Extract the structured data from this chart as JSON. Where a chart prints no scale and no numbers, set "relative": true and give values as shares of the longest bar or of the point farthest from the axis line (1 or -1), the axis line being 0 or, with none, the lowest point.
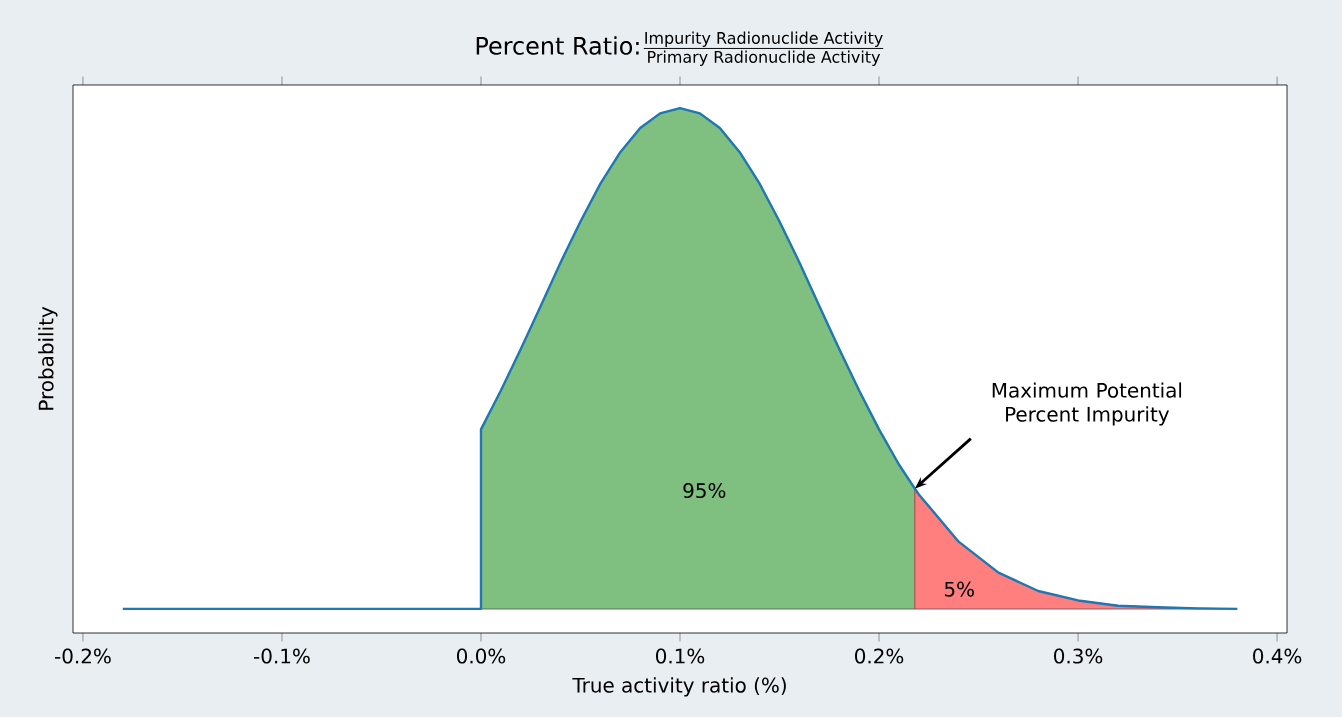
{
  "chart_data": {
    "type": "line",
    "title": "\\text{Percent Ratio:}\\frac{\\text{Impurity Radionuclide Activity}}{\\text{Primary Radionuclide Activity}}",
    "xlabel": "True activity ratio (%)",
    "ylabel": "Probability",
    "relative": true,
    "xlim": [
      -0.205,
      0.405
    ],
    "xticks": [
      {
        "value": -0.2,
        "label": "-0.2%"
      },
      {
        "value": -0.1,
        "label": "-0.1%"
      },
      {
        "value": 0.0,
        "label": "0.0%"
      },
      {
        "value": 0.1,
        "label": "0.1%"
      },
      {
        "value": 0.2,
        "label": "0.2%"
      },
      {
        "value": 0.3,
        "label": "0.3%"
      },
      {
        "value": 0.4,
        "label": "0.4%"
      }
    ],
    "series": [
      {
        "type": "area",
        "color": "#7fbf7f",
        "x": [
          0,
          0.01,
          0.02,
          0.03,
          0.04,
          0.05,
          0.06,
          0.07,
          0.08,
          0.09,
          0.1,
          0.11,
          0.12,
          0.13,
          0.14,
          0.15,
          0.16,
          0.17,
          0.18,
          0.19,
          0.2,
          0.21,
          0.218
        ],
        "values": [
          0.388,
          0.462,
          0.541,
          0.623,
          0.706,
          0.784,
          0.856,
          0.916,
          0.962,
          0.99,
          1,
          0.99,
          0.962,
          0.916,
          0.856,
          0.784,
          0.706,
          0.623,
          0.541,
          0.462,
          0.388,
          0.321,
          0.275
        ]
      },
      {
        "type": "area",
        "color": "#ff7f7f",
        "x": [
          0.218,
          0.22,
          0.24,
          0.26,
          0.28,
          0.3,
          0.32,
          0.34,
          0.36,
          0.38
        ],
        "values": [
          0.275,
          0.264,
          0.174,
          0.115,
          0.08,
          0.062,
          0.052,
          0.049,
          0.047,
          0.046
        ]
      },
      {
        "type": "line",
        "color": "#1f77b4",
        "x": [
          -0.18,
          0,
          0,
          0.01,
          0.02,
          0.03,
          0.04,
          0.05,
          0.06,
          0.07,
          0.08,
          0.09,
          0.1,
          0.11,
          0.12,
          0.13,
          0.14,
          0.15,
          0.16,
          0.17,
          0.18,
          0.19,
          0.2,
          0.21,
          0.218,
          0.22,
          0.24,
          0.26,
          0.28,
          0.3,
          0.32,
          0.34,
          0.36,
          0.38
        ],
        "values": [
          0.046,
          0.046,
          0.388,
          0.462,
          0.541,
          0.623,
          0.706,
          0.784,
          0.856,
          0.916,
          0.962,
          0.99,
          1,
          0.99,
          0.962,
          0.916,
          0.856,
          0.784,
          0.706,
          0.623,
          0.541,
          0.462,
          0.388,
          0.321,
          0.275,
          0.264,
          0.174,
          0.115,
          0.08,
          0.062,
          0.052,
          0.049,
          0.047,
          0.046
        ]
      }
    ],
    "annotations": [
      "95%",
      "5%",
      {
        "text": "Maximum Potential Percent Impurity",
        "x": 0.218,
        "y": 0.275
      }
    ]
  }
}
